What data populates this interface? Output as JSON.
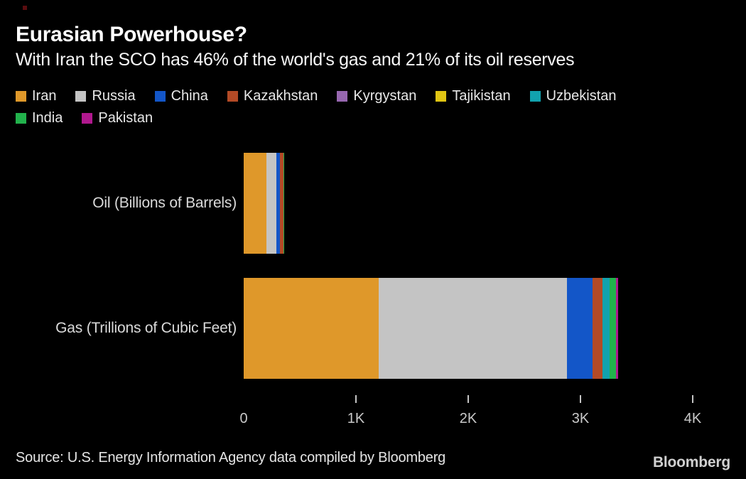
{
  "chart_data": {
    "type": "bar",
    "orientation": "horizontal",
    "stacked": true,
    "title": "Eurasian Powerhouse?",
    "subtitle": "With Iran the SCO has 46% of the world's gas and 21% of its oil reserves",
    "categories": [
      "Oil (Billions of Barrels)",
      "Gas (Trillions of Cubic Feet)"
    ],
    "series": [
      {
        "name": "Iran",
        "color": "#df982a",
        "values": [
          200,
          1200
        ]
      },
      {
        "name": "Russia",
        "color": "#c4c4c4",
        "values": [
          90,
          1680
        ]
      },
      {
        "name": "China",
        "color": "#1356c8",
        "values": [
          33,
          228
        ]
      },
      {
        "name": "Kazakhstan",
        "color": "#b34a26",
        "values": [
          30,
          88
        ]
      },
      {
        "name": "Kyrgystan",
        "color": "#9767b0",
        "values": [
          0.05,
          0.3
        ]
      },
      {
        "name": "Tajikistan",
        "color": "#e0c513",
        "values": [
          0.01,
          0.2
        ]
      },
      {
        "name": "Uzbekistan",
        "color": "#12a2ae",
        "values": [
          0.6,
          63
        ]
      },
      {
        "name": "India",
        "color": "#22b24c",
        "values": [
          4.5,
          57
        ]
      },
      {
        "name": "Pakistan",
        "color": "#b0188e",
        "values": [
          0.35,
          19
        ]
      }
    ],
    "xlim": [
      0,
      4000
    ],
    "x_ticks": [
      {
        "value": 0,
        "label": "0",
        "mark": false
      },
      {
        "value": 1000,
        "label": "1K",
        "mark": true
      },
      {
        "value": 2000,
        "label": "2K",
        "mark": true
      },
      {
        "value": 3000,
        "label": "3K",
        "mark": true
      },
      {
        "value": 4000,
        "label": "4K",
        "mark": true
      }
    ],
    "grid": false,
    "legend_position": "top",
    "legend_rows": [
      [
        "Iran",
        "Russia",
        "China",
        "Kazakhstan",
        "Kyrgystan",
        "Tajikistan",
        "Uzbekistan"
      ],
      [
        "India",
        "Pakistan"
      ]
    ]
  },
  "footer": {
    "source": "Source: U.S. Energy Information Agency data compiled by Bloomberg",
    "brand": "Bloomberg"
  }
}
